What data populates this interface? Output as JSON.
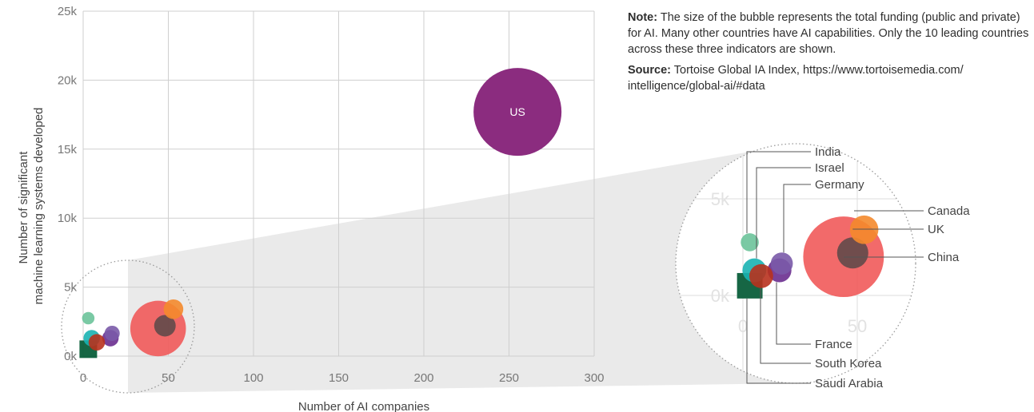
{
  "note": {
    "note_heading": "Note:",
    "note_text": "The size of the bubble represents the total funding (public and private) for AI. Many other countries have AI capabilities. Only the 10 leading countries across these three indicators are shown.",
    "source_heading": "Source:",
    "source_text": "Tortoise Global IA Index, https://www.tortoisemedia.com/ intelligence/global-ai/#data"
  },
  "chart_data": {
    "type": "scatter",
    "subtype": "bubble",
    "title": "",
    "xlabel": "Number of AI companies",
    "ylabel": "Number of significant machine learning systems developed",
    "xlim": [
      0,
      300
    ],
    "ylim": [
      0,
      25000
    ],
    "xticks": [
      0,
      50,
      100,
      150,
      200,
      250,
      300
    ],
    "xtick_labels": [
      "0",
      "50",
      "100",
      "150",
      "200",
      "250",
      "300"
    ],
    "yticks": [
      0,
      5000,
      10000,
      15000,
      20000,
      25000
    ],
    "ytick_labels": [
      "0k",
      "5k",
      "10k",
      "15k",
      "20k",
      "25k"
    ],
    "grid": true,
    "size_encoding": "total funding (public and private) for AI",
    "points": [
      {
        "name": "US",
        "label": "US",
        "x": 255,
        "y": 17700,
        "size": 100,
        "color": "#8b2c7f",
        "opacity": 1.0
      },
      {
        "name": "China",
        "label": "China",
        "x": 44,
        "y": 2000,
        "size": 40,
        "color": "#f15a5a",
        "opacity": 0.9
      },
      {
        "name": "UK",
        "label": "UK",
        "x": 48,
        "y": 2200,
        "size": 6,
        "color": "#444444",
        "opacity": 0.75
      },
      {
        "name": "Canada",
        "label": "Canada",
        "x": 53,
        "y": 3400,
        "size": 5,
        "color": "#f4892c",
        "opacity": 0.9
      },
      {
        "name": "India",
        "label": "India",
        "x": 3,
        "y": 2750,
        "size": 2,
        "color": "#6cc39a",
        "opacity": 0.9
      },
      {
        "name": "Israel",
        "label": "Israel",
        "x": 5,
        "y": 1300,
        "size": 3.5,
        "color": "#1ab3b3",
        "opacity": 0.9
      },
      {
        "name": "Germany",
        "label": "Germany",
        "x": 17,
        "y": 1650,
        "size": 3,
        "color": "#7a5aa8",
        "opacity": 0.9
      },
      {
        "name": "France",
        "label": "France",
        "x": 16,
        "y": 1300,
        "size": 3.5,
        "color": "#6a2d8f",
        "opacity": 0.9
      },
      {
        "name": "South Korea",
        "label": "South Korea",
        "x": 8,
        "y": 1000,
        "size": 3.5,
        "color": "#b8321e",
        "opacity": 0.9
      },
      {
        "name": "Saudi Arabia",
        "label": "Saudi Arabia",
        "x": 3,
        "y": 500,
        "size": 4,
        "color": "#0a5e3a",
        "opacity": 0.95
      }
    ],
    "inset": {
      "xlim": [
        0,
        70
      ],
      "ylim": [
        0,
        7000
      ],
      "xtick_labels": [
        "0",
        "50"
      ],
      "ytick_labels": [
        "0k",
        "5k"
      ],
      "callouts_left": [
        "India",
        "Israel",
        "Germany"
      ],
      "callouts_right": [
        "Canada",
        "UK",
        "China"
      ],
      "callouts_bottom": [
        "France",
        "South Korea",
        "Saudi Arabia"
      ]
    }
  }
}
